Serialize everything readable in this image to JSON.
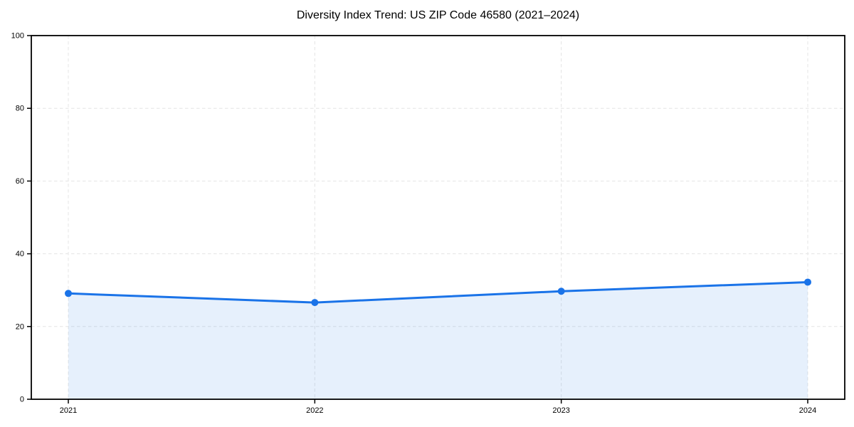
{
  "chart_data": {
    "type": "line",
    "title": "Diversity Index Trend: US ZIP Code 46580 (2021–2024)",
    "categories": [
      "2021",
      "2022",
      "2023",
      "2024"
    ],
    "series": [
      {
        "name": "Diversity Index",
        "values": [
          29.1,
          26.6,
          29.7,
          32.2
        ]
      }
    ],
    "xlabel": "",
    "ylabel": "",
    "ylim": [
      0,
      100
    ],
    "yticks": [
      0,
      20,
      40,
      60,
      80,
      100
    ],
    "ytick_labels": [
      "0",
      "20",
      "40",
      "60",
      "80",
      "100"
    ],
    "grid": "both-dashed",
    "legend_position": "none",
    "colors": {
      "line": "#1a73e8",
      "marker": "#1a73e8",
      "area_fill": "#1a73e8",
      "area_opacity": 0.11,
      "grid": "#e4e4e4",
      "axis": "#000000",
      "background": "#ffffff",
      "text": "#000000"
    },
    "marker_style": "circle"
  }
}
